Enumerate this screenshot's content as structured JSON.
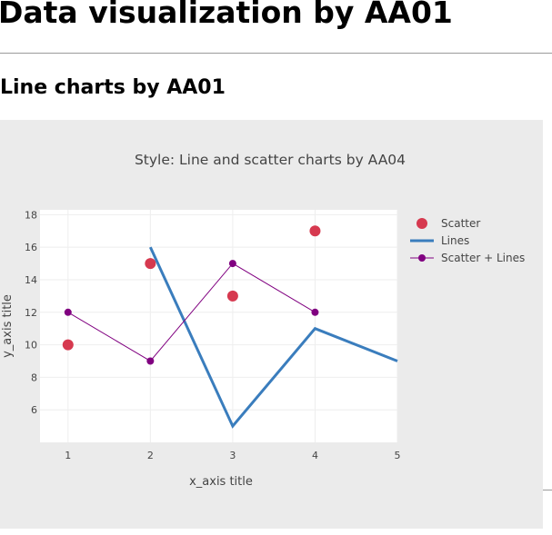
{
  "page": {
    "title": "Data visualization by AA01",
    "subtitle": "Line charts by AA01"
  },
  "colors": {
    "scatter": "#d6394f",
    "lines": "#3a7dbd",
    "scatter_lines": "#800080",
    "panel_bg": "#ebebeb",
    "plot_bg": "#ffffff",
    "grid": "#eeeeee"
  },
  "chart_data": {
    "type": "line",
    "title": "Style: Line and scatter charts by AA04",
    "xlabel": "x_axis title",
    "ylabel": "y_axis title",
    "xlim": [
      0.66,
      5
    ],
    "ylim": [
      4,
      18.3
    ],
    "xticks": [
      1,
      2,
      3,
      4,
      5
    ],
    "yticks": [
      6,
      8,
      10,
      12,
      14,
      16,
      18
    ],
    "grid": true,
    "legend_position": "top-right",
    "series": [
      {
        "name": "Scatter",
        "mode": "markers",
        "x": [
          1,
          2,
          3,
          4
        ],
        "y": [
          10,
          15,
          13,
          17
        ]
      },
      {
        "name": "Lines",
        "mode": "lines",
        "x": [
          2,
          3,
          4,
          5
        ],
        "y": [
          16,
          5,
          11,
          9
        ]
      },
      {
        "name": "Scatter + Lines",
        "mode": "lines+markers",
        "x": [
          1,
          2,
          3,
          4
        ],
        "y": [
          12,
          9,
          15,
          12
        ]
      }
    ]
  }
}
